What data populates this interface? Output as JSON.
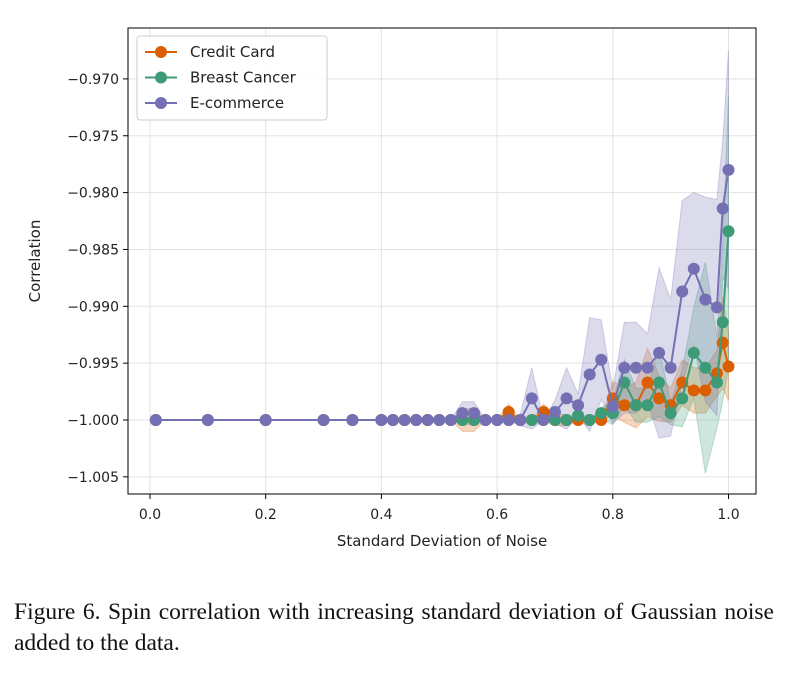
{
  "chart_data": {
    "type": "line",
    "xlabel": "Standard Deviation of Noise",
    "ylabel": "Correlation",
    "xlim": [
      -0.03,
      1.05
    ],
    "ylim": [
      -1.0065,
      -0.9655
    ],
    "xticks": [
      0.0,
      0.2,
      0.4,
      0.6,
      0.8,
      1.0
    ],
    "xtick_labels": [
      "0.0",
      "0.2",
      "0.4",
      "0.6",
      "0.8",
      "1.0"
    ],
    "yticks": [
      -0.97,
      -0.975,
      -0.98,
      -0.985,
      -0.99,
      -0.995,
      -1.0,
      -1.005
    ],
    "ytick_labels": [
      "−0.970",
      "−0.975",
      "−0.980",
      "−0.985",
      "−0.990",
      "−0.995",
      "−1.000",
      "−1.005"
    ],
    "grid": true,
    "legend_position": "top-left",
    "x": [
      0.01,
      0.1,
      0.2,
      0.3,
      0.35,
      0.4,
      0.42,
      0.44,
      0.46,
      0.48,
      0.5,
      0.52,
      0.54,
      0.56,
      0.58,
      0.6,
      0.62,
      0.64,
      0.66,
      0.68,
      0.7,
      0.72,
      0.74,
      0.76,
      0.78,
      0.8,
      0.82,
      0.84,
      0.86,
      0.88,
      0.9,
      0.92,
      0.94,
      0.96,
      0.98,
      0.99,
      1.0
    ],
    "series": [
      {
        "name": "Credit Card",
        "color": "#d95f02",
        "values": [
          -1,
          -1,
          -1,
          -1,
          -1,
          -1,
          -1,
          -1,
          -1,
          -1,
          -1,
          -1,
          -1,
          -1,
          -1,
          -1,
          -0.9993,
          -1,
          -1,
          -0.9993,
          -1,
          -1,
          -1,
          -1,
          -1,
          -0.9981,
          -0.9987,
          -0.9987,
          -0.9967,
          -0.9981,
          -0.9987,
          -0.9967,
          -0.9974,
          -0.9974,
          -0.9959,
          -0.9932,
          -0.9953
        ],
        "spread": [
          0,
          0,
          0,
          0,
          0,
          0,
          0,
          0,
          0,
          0,
          0,
          0,
          0.001,
          0.001,
          0,
          0,
          0.0007,
          0,
          0,
          0.0007,
          0.0005,
          0.0005,
          0,
          0,
          0,
          0.0015,
          0.0015,
          0.002,
          0.003,
          0.002,
          0.0015,
          0.002,
          0.002,
          0.002,
          0.002,
          0.004,
          0.003
        ]
      },
      {
        "name": "Breast Cancer",
        "color": "#3d9c77",
        "values": [
          -1,
          -1,
          -1,
          -1,
          -1,
          -1,
          -1,
          -1,
          -1,
          -1,
          -1,
          -1,
          -1,
          -1,
          -1,
          -1,
          -1,
          -1,
          -1,
          -1,
          -1,
          -1,
          -0.9996,
          -1,
          -0.9994,
          -0.9994,
          -0.9967,
          -0.9987,
          -0.9987,
          -0.9967,
          -0.9994,
          -0.9981,
          -0.9941,
          -0.9954,
          -0.9967,
          -0.9914,
          -0.9834
        ],
        "spread": [
          0,
          0,
          0,
          0,
          0,
          0,
          0,
          0,
          0,
          0,
          0,
          0,
          0,
          0,
          0,
          0,
          0,
          0,
          0,
          0,
          0,
          0,
          0.0005,
          0,
          0.0005,
          0.001,
          0.002,
          0.0015,
          0.0015,
          0.003,
          0.001,
          0.0025,
          0.004,
          0.0093,
          0.004,
          0.007,
          0.012
        ]
      },
      {
        "name": "E-commerce",
        "color": "#7570b3",
        "values": [
          -1,
          -1,
          -1,
          -1,
          -1,
          -1,
          -1,
          -1,
          -1,
          -1,
          -1,
          -1,
          -0.9994,
          -0.9994,
          -1,
          -1,
          -1,
          -1,
          -0.9981,
          -1,
          -0.9993,
          -0.9981,
          -0.9987,
          -0.996,
          -0.9947,
          -0.9988,
          -0.9954,
          -0.9954,
          -0.9954,
          -0.9941,
          -0.9954,
          -0.9887,
          -0.9867,
          -0.9894,
          -0.9901,
          -0.9814,
          -0.978
        ],
        "spread": [
          0,
          0,
          0,
          0,
          0,
          0,
          0,
          0,
          0,
          0,
          0,
          0,
          0.001,
          0.001,
          0,
          0,
          0,
          0.0005,
          0.0027,
          0,
          0.001,
          0.0027,
          0.001,
          0.005,
          0.0035,
          0.0015,
          0.004,
          0.004,
          0.003,
          0.0075,
          0.006,
          0.008,
          0.0067,
          0.009,
          0.0095,
          0.006,
          0.0105
        ]
      }
    ]
  },
  "caption": "Figure 6.  Spin correlation with increasing standard deviation of Gaussian noise added to the data."
}
